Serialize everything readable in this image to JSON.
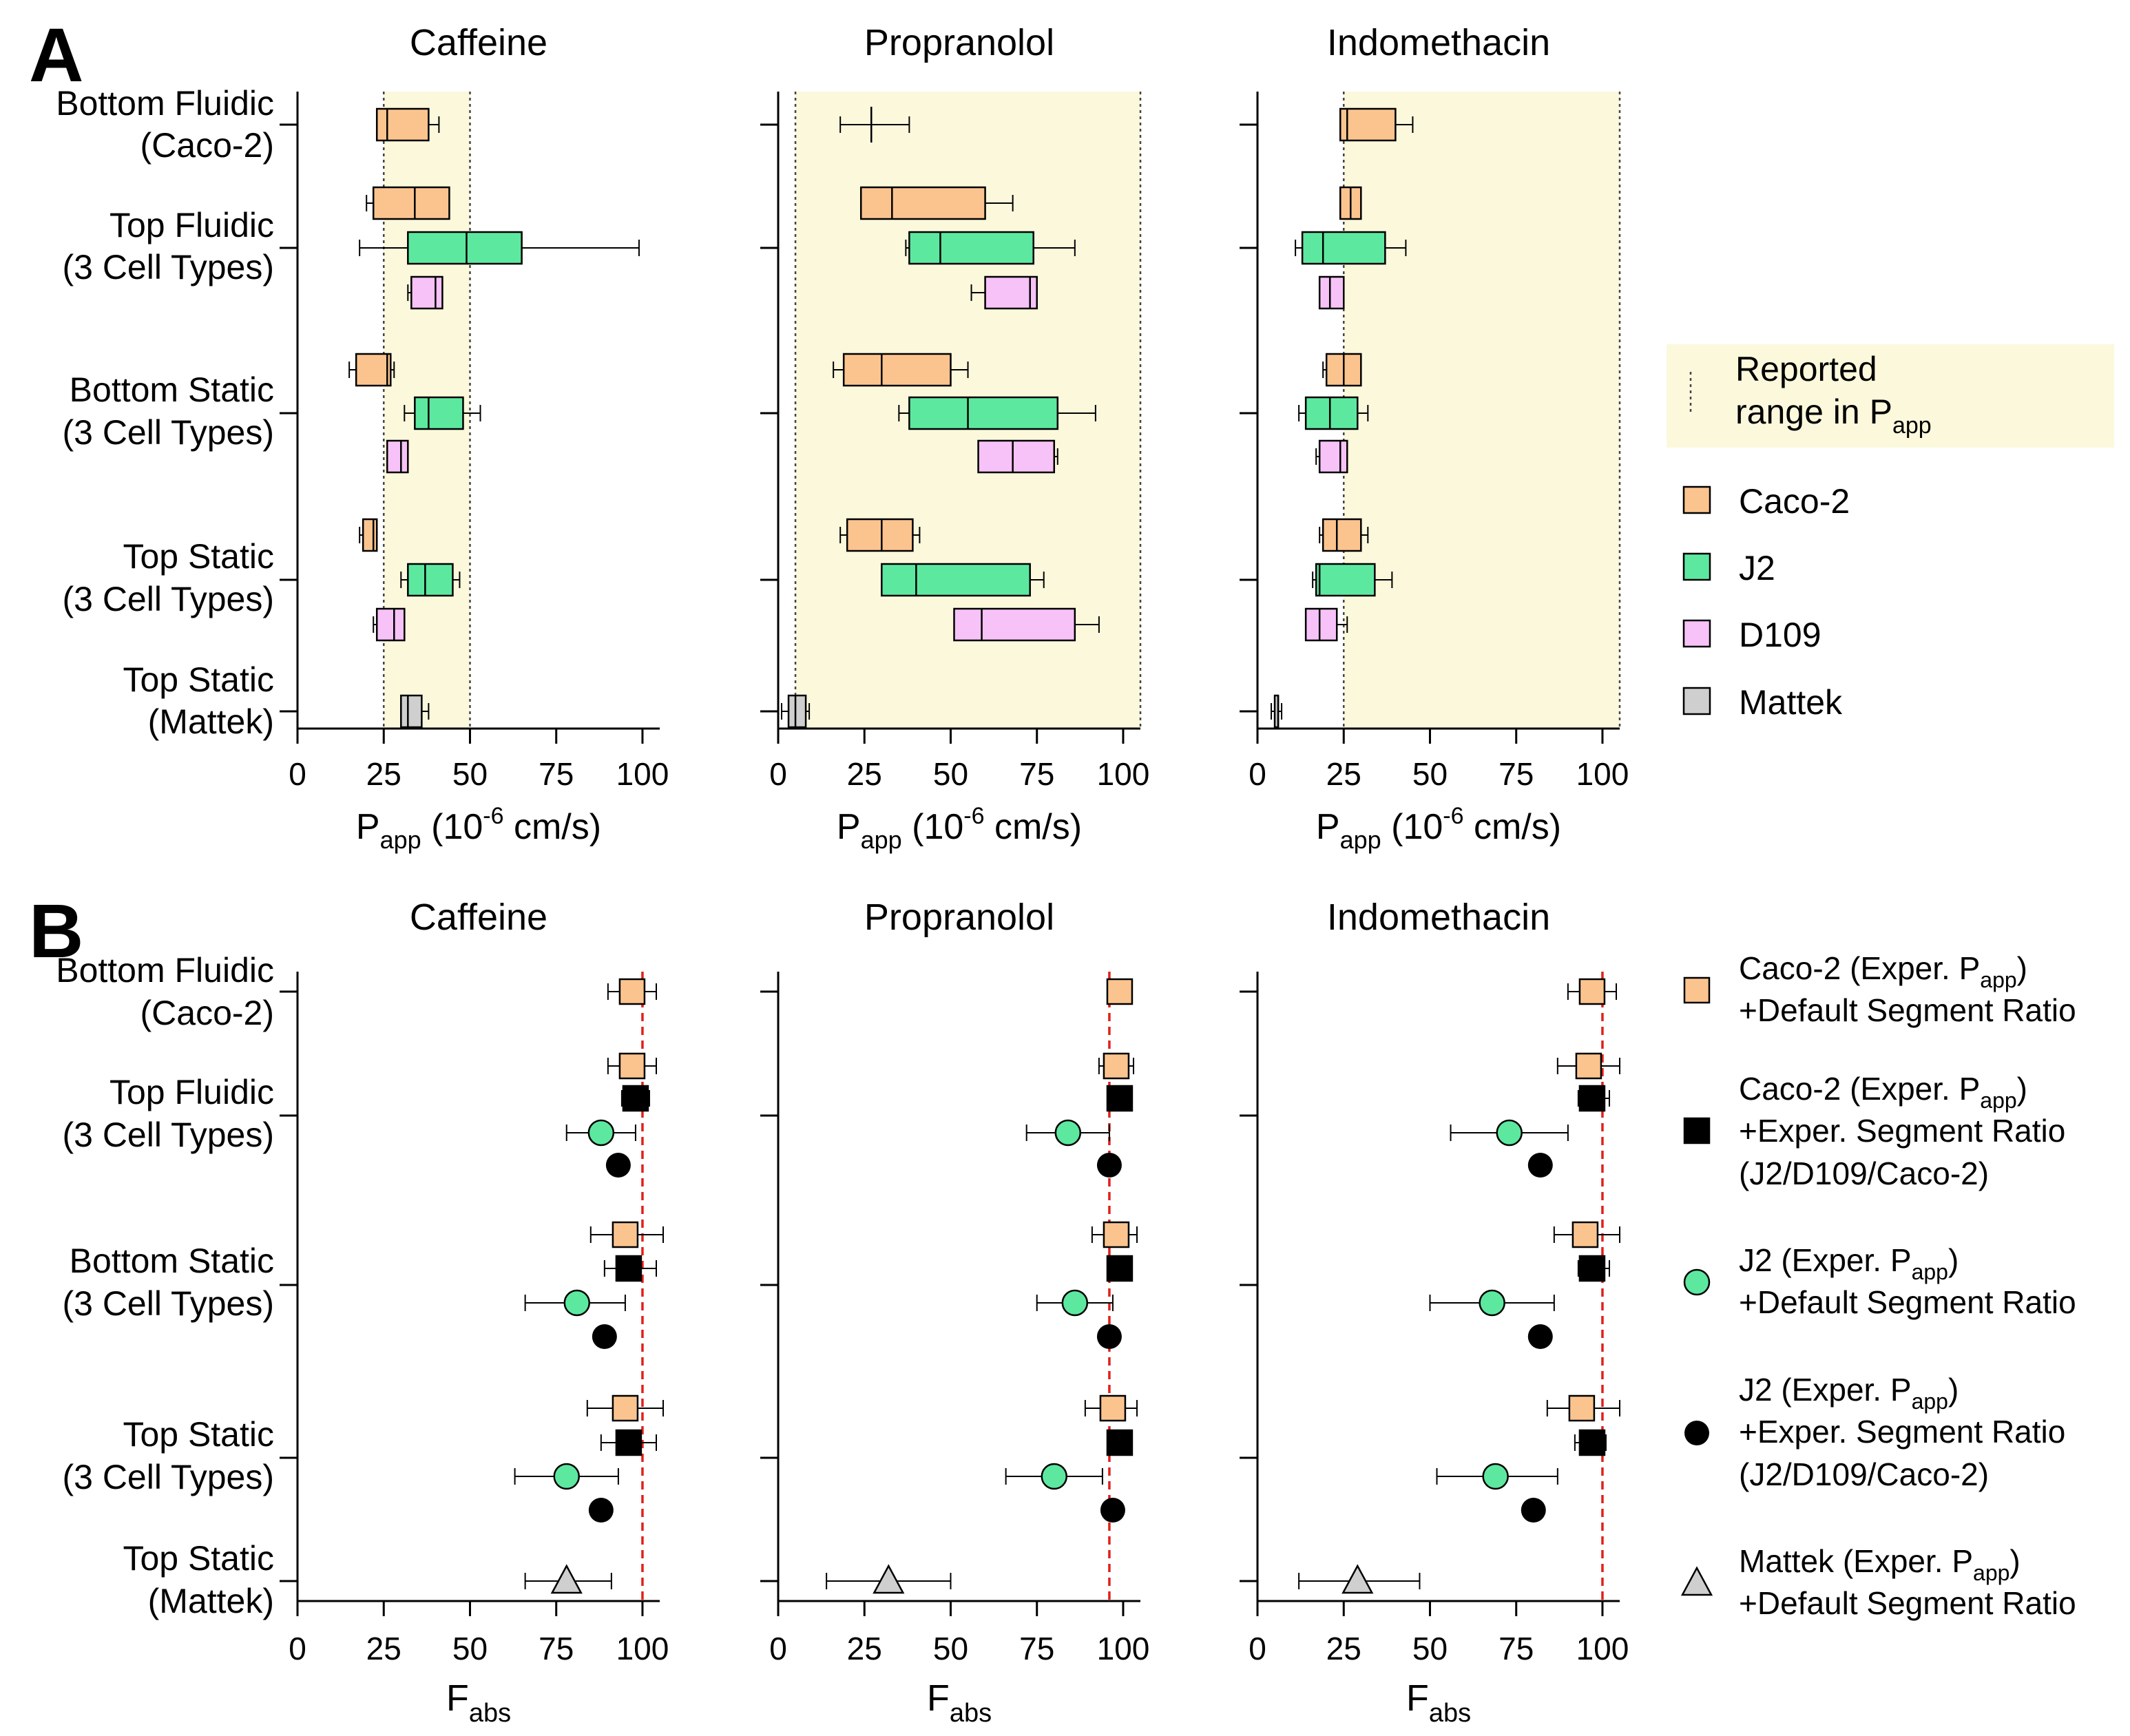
{
  "panels": {
    "a": "A",
    "b": "B"
  },
  "drugs": [
    "Caffeine",
    "Propranolol",
    "Indomethacin"
  ],
  "row_labels": [
    [
      "Bottom Fluidic",
      "(Caco-2)"
    ],
    [
      "Top Fluidic",
      "(3 Cell Types)"
    ],
    [
      "Bottom Static",
      "(3 Cell Types)"
    ],
    [
      "Top Static",
      "(3 Cell Types)"
    ],
    [
      "Top Static",
      "(Mattek)"
    ]
  ],
  "axis": {
    "a_label_main": "P",
    "a_label_sub": "app",
    "a_label_unit_pre": " (10",
    "a_label_exp": "-6",
    "a_label_unit_post": " cm/s)",
    "b_label_main": "F",
    "b_label_sub": "abs",
    "ticks": [
      "0",
      "25",
      "50",
      "75",
      "100"
    ]
  },
  "legend_a": [
    {
      "key": "range",
      "lines": [
        "Reported",
        "range in P"
      ],
      "sub": "app"
    },
    {
      "key": "caco2",
      "text": "Caco-2"
    },
    {
      "key": "j2",
      "text": "J2"
    },
    {
      "key": "d109",
      "text": "D109"
    },
    {
      "key": "mattek",
      "text": "Mattek"
    }
  ],
  "legend_b": [
    {
      "key": "caco2_default",
      "l1": "Caco-2 (Exper. P",
      "l1sub": "app",
      "l1end": ")",
      "l2": "+Default Segment Ratio",
      "l3": ""
    },
    {
      "key": "caco2_exper",
      "l1": "Caco-2 (Exper. P",
      "l1sub": "app",
      "l1end": ")",
      "l2": "+Exper. Segment Ratio",
      "l3": "(J2/D109/Caco-2)"
    },
    {
      "key": "j2_default",
      "l1": "J2 (Exper. P",
      "l1sub": "app",
      "l1end": ")",
      "l2": "+Default Segment Ratio",
      "l3": ""
    },
    {
      "key": "j2_exper",
      "l1": "J2 (Exper. P",
      "l1sub": "app",
      "l1end": ")",
      "l2": "+Exper. Segment Ratio",
      "l3": "(J2/D109/Caco-2)"
    },
    {
      "key": "mattek_default",
      "l1": "Mattek (Exper. P",
      "l1sub": "app",
      "l1end": ")",
      "l2": "+Default Segment Ratio",
      "l3": ""
    }
  ],
  "colors": {
    "caco2": "#fbc48f",
    "j2": "#5de8a0",
    "d109": "#f6c2f7",
    "mattek": "#cfcfcf",
    "black": "#000000",
    "range": "#fbf8dc",
    "ref": "#e0201a"
  },
  "chart_data": [
    {
      "type": "boxplot",
      "panel": "A",
      "xlabel": "Papp (10-6 cm/s)",
      "xlim": [
        0,
        105
      ],
      "xticks": [
        0,
        25,
        50,
        75,
        100
      ],
      "plots": [
        {
          "title": "Caffeine",
          "reported_range": [
            25,
            50
          ],
          "boxes": [
            {
              "row": 0,
              "cell": "caco2",
              "min": 23,
              "q1": 23,
              "med": 26,
              "q3": 38,
              "max": 41
            },
            {
              "row": 1,
              "cell": "caco2",
              "min": 20,
              "q1": 22,
              "med": 34,
              "q3": 44,
              "max": 44
            },
            {
              "row": 1,
              "cell": "j2",
              "min": 18,
              "q1": 32,
              "med": 49,
              "q3": 65,
              "max": 99
            },
            {
              "row": 1,
              "cell": "d109",
              "min": 32,
              "q1": 33,
              "med": 40,
              "q3": 42,
              "max": 42
            },
            {
              "row": 2,
              "cell": "caco2",
              "min": 15,
              "q1": 17,
              "med": 26,
              "q3": 27,
              "max": 28
            },
            {
              "row": 2,
              "cell": "j2",
              "min": 31,
              "q1": 34,
              "med": 38,
              "q3": 48,
              "max": 53
            },
            {
              "row": 2,
              "cell": "d109",
              "min": 26,
              "q1": 26,
              "med": 30,
              "q3": 32,
              "max": 32
            },
            {
              "row": 3,
              "cell": "caco2",
              "min": 18,
              "q1": 19,
              "med": 22,
              "q3": 23,
              "max": 23
            },
            {
              "row": 3,
              "cell": "j2",
              "min": 30,
              "q1": 32,
              "med": 37,
              "q3": 45,
              "max": 47
            },
            {
              "row": 3,
              "cell": "d109",
              "min": 22,
              "q1": 23,
              "med": 28,
              "q3": 31,
              "max": 31
            },
            {
              "row": 4,
              "cell": "mattek",
              "min": 30,
              "q1": 30,
              "med": 32,
              "q3": 36,
              "max": 38
            }
          ],
          "crosses": []
        },
        {
          "title": "Propranolol",
          "reported_range": [
            5,
            105
          ],
          "boxes": [
            {
              "row": 1,
              "cell": "caco2",
              "min": 24,
              "q1": 24,
              "med": 33,
              "q3": 60,
              "max": 68
            },
            {
              "row": 1,
              "cell": "j2",
              "min": 37,
              "q1": 38,
              "med": 47,
              "q3": 74,
              "max": 86
            },
            {
              "row": 1,
              "cell": "d109",
              "min": 56,
              "q1": 60,
              "med": 73,
              "q3": 75,
              "max": 75
            },
            {
              "row": 2,
              "cell": "caco2",
              "min": 16,
              "q1": 19,
              "med": 30,
              "q3": 50,
              "max": 55
            },
            {
              "row": 2,
              "cell": "j2",
              "min": 35,
              "q1": 38,
              "med": 55,
              "q3": 81,
              "max": 92
            },
            {
              "row": 2,
              "cell": "d109",
              "min": 58,
              "q1": 58,
              "med": 68,
              "q3": 80,
              "max": 81
            },
            {
              "row": 3,
              "cell": "caco2",
              "min": 18,
              "q1": 20,
              "med": 30,
              "q3": 39,
              "max": 41
            },
            {
              "row": 3,
              "cell": "j2",
              "min": 30,
              "q1": 30,
              "med": 40,
              "q3": 73,
              "max": 77
            },
            {
              "row": 3,
              "cell": "d109",
              "min": 51,
              "q1": 51,
              "med": 59,
              "q3": 86,
              "max": 93
            },
            {
              "row": 4,
              "cell": "mattek",
              "min": 1,
              "q1": 3,
              "med": 5,
              "q3": 8,
              "max": 9
            }
          ],
          "crosses": [
            {
              "row": 0,
              "min": 18,
              "center": 27,
              "max": 38
            }
          ]
        },
        {
          "title": "Indomethacin",
          "reported_range": [
            25,
            105
          ],
          "boxes": [
            {
              "row": 0,
              "cell": "caco2",
              "min": 24,
              "q1": 24,
              "med": 26,
              "q3": 40,
              "max": 45
            },
            {
              "row": 1,
              "cell": "caco2",
              "min": 24,
              "q1": 24,
              "med": 27,
              "q3": 30,
              "max": 30
            },
            {
              "row": 1,
              "cell": "j2",
              "min": 11,
              "q1": 13,
              "med": 19,
              "q3": 37,
              "max": 43
            },
            {
              "row": 1,
              "cell": "d109",
              "min": 18,
              "q1": 18,
              "med": 21,
              "q3": 25,
              "max": 25
            },
            {
              "row": 2,
              "cell": "caco2",
              "min": 19,
              "q1": 20,
              "med": 25,
              "q3": 30,
              "max": 30
            },
            {
              "row": 2,
              "cell": "j2",
              "min": 12,
              "q1": 14,
              "med": 21,
              "q3": 29,
              "max": 32
            },
            {
              "row": 2,
              "cell": "d109",
              "min": 17,
              "q1": 18,
              "med": 24,
              "q3": 26,
              "max": 26
            },
            {
              "row": 3,
              "cell": "caco2",
              "min": 18,
              "q1": 19,
              "med": 23,
              "q3": 30,
              "max": 32
            },
            {
              "row": 3,
              "cell": "j2",
              "min": 16,
              "q1": 17,
              "med": 18,
              "q3": 34,
              "max": 39
            },
            {
              "row": 3,
              "cell": "d109",
              "min": 14,
              "q1": 14,
              "med": 18,
              "q3": 23,
              "max": 26
            },
            {
              "row": 4,
              "cell": "mattek",
              "min": 4,
              "q1": 5,
              "med": 6,
              "q3": 6,
              "max": 7
            }
          ],
          "crosses": []
        }
      ]
    },
    {
      "type": "scatter",
      "panel": "B",
      "xlabel": "Fabs",
      "xlim": [
        0,
        105
      ],
      "xticks": [
        0,
        25,
        50,
        75,
        100
      ],
      "reference_line": 100,
      "plots": [
        {
          "title": "Caffeine",
          "reference_line": 100,
          "points": [
            {
              "row": 0,
              "sub": 0,
              "series": "caco2_default",
              "x": 97,
              "lo": 90,
              "hi": 104
            },
            {
              "row": 1,
              "sub": 0,
              "series": "caco2_default",
              "x": 97,
              "lo": 90,
              "hi": 104
            },
            {
              "row": 1,
              "sub": 1,
              "series": "caco2_exper",
              "x": 98,
              "lo": 94,
              "hi": 102
            },
            {
              "row": 1,
              "sub": 2,
              "series": "j2_default",
              "x": 88,
              "lo": 78,
              "hi": 98
            },
            {
              "row": 1,
              "sub": 3,
              "series": "j2_exper",
              "x": 93,
              "lo": null,
              "hi": null
            },
            {
              "row": 2,
              "sub": 0,
              "series": "caco2_default",
              "x": 95,
              "lo": 85,
              "hi": 106
            },
            {
              "row": 2,
              "sub": 1,
              "series": "caco2_exper",
              "x": 96,
              "lo": 89,
              "hi": 104
            },
            {
              "row": 2,
              "sub": 2,
              "series": "j2_default",
              "x": 81,
              "lo": 66,
              "hi": 95
            },
            {
              "row": 2,
              "sub": 3,
              "series": "j2_exper",
              "x": 89,
              "lo": null,
              "hi": null
            },
            {
              "row": 3,
              "sub": 0,
              "series": "caco2_default",
              "x": 95,
              "lo": 84,
              "hi": 106
            },
            {
              "row": 3,
              "sub": 1,
              "series": "caco2_exper",
              "x": 96,
              "lo": 88,
              "hi": 104
            },
            {
              "row": 3,
              "sub": 2,
              "series": "j2_default",
              "x": 78,
              "lo": 63,
              "hi": 93
            },
            {
              "row": 3,
              "sub": 3,
              "series": "j2_exper",
              "x": 88,
              "lo": null,
              "hi": null
            },
            {
              "row": 4,
              "sub": 0,
              "series": "mattek_default",
              "x": 78,
              "lo": 66,
              "hi": 91
            }
          ]
        },
        {
          "title": "Propranolol",
          "reference_line": 96,
          "points": [
            {
              "row": 0,
              "sub": 0,
              "series": "caco2_default",
              "x": 99,
              "lo": 96,
              "hi": 102
            },
            {
              "row": 1,
              "sub": 0,
              "series": "caco2_default",
              "x": 98,
              "lo": 93,
              "hi": 103
            },
            {
              "row": 1,
              "sub": 1,
              "series": "caco2_exper",
              "x": 99,
              "lo": null,
              "hi": null
            },
            {
              "row": 1,
              "sub": 2,
              "series": "j2_default",
              "x": 84,
              "lo": 72,
              "hi": 96
            },
            {
              "row": 1,
              "sub": 3,
              "series": "j2_exper",
              "x": 96,
              "lo": null,
              "hi": null
            },
            {
              "row": 2,
              "sub": 0,
              "series": "caco2_default",
              "x": 98,
              "lo": 91,
              "hi": 104
            },
            {
              "row": 2,
              "sub": 1,
              "series": "caco2_exper",
              "x": 99,
              "lo": null,
              "hi": null
            },
            {
              "row": 2,
              "sub": 2,
              "series": "j2_default",
              "x": 86,
              "lo": 75,
              "hi": 97
            },
            {
              "row": 2,
              "sub": 3,
              "series": "j2_exper",
              "x": 96,
              "lo": null,
              "hi": null
            },
            {
              "row": 3,
              "sub": 0,
              "series": "caco2_default",
              "x": 97,
              "lo": 89,
              "hi": 104
            },
            {
              "row": 3,
              "sub": 1,
              "series": "caco2_exper",
              "x": 99,
              "lo": null,
              "hi": null
            },
            {
              "row": 3,
              "sub": 2,
              "series": "j2_default",
              "x": 80,
              "lo": 66,
              "hi": 94
            },
            {
              "row": 3,
              "sub": 3,
              "series": "j2_exper",
              "x": 97,
              "lo": null,
              "hi": null
            },
            {
              "row": 4,
              "sub": 0,
              "series": "mattek_default",
              "x": 32,
              "lo": 14,
              "hi": 50
            }
          ]
        },
        {
          "title": "Indomethacin",
          "reference_line": 100,
          "points": [
            {
              "row": 0,
              "sub": 0,
              "series": "caco2_default",
              "x": 97,
              "lo": 90,
              "hi": 104
            },
            {
              "row": 1,
              "sub": 0,
              "series": "caco2_default",
              "x": 96,
              "lo": 87,
              "hi": 105
            },
            {
              "row": 1,
              "sub": 1,
              "series": "caco2_exper",
              "x": 97,
              "lo": 93,
              "hi": 102
            },
            {
              "row": 1,
              "sub": 2,
              "series": "j2_default",
              "x": 73,
              "lo": 56,
              "hi": 90
            },
            {
              "row": 1,
              "sub": 3,
              "series": "j2_exper",
              "x": 82,
              "lo": null,
              "hi": null
            },
            {
              "row": 2,
              "sub": 0,
              "series": "caco2_default",
              "x": 95,
              "lo": 86,
              "hi": 105
            },
            {
              "row": 2,
              "sub": 1,
              "series": "caco2_exper",
              "x": 97,
              "lo": 93,
              "hi": 102
            },
            {
              "row": 2,
              "sub": 2,
              "series": "j2_default",
              "x": 68,
              "lo": 50,
              "hi": 86
            },
            {
              "row": 2,
              "sub": 3,
              "series": "j2_exper",
              "x": 82,
              "lo": null,
              "hi": null
            },
            {
              "row": 3,
              "sub": 0,
              "series": "caco2_default",
              "x": 94,
              "lo": 84,
              "hi": 105
            },
            {
              "row": 3,
              "sub": 1,
              "series": "caco2_exper",
              "x": 97,
              "lo": 92,
              "hi": 101
            },
            {
              "row": 3,
              "sub": 2,
              "series": "j2_default",
              "x": 69,
              "lo": 52,
              "hi": 87
            },
            {
              "row": 3,
              "sub": 3,
              "series": "j2_exper",
              "x": 80,
              "lo": null,
              "hi": null
            },
            {
              "row": 4,
              "sub": 0,
              "series": "mattek_default",
              "x": 29,
              "lo": 12,
              "hi": 47
            }
          ]
        }
      ]
    }
  ]
}
